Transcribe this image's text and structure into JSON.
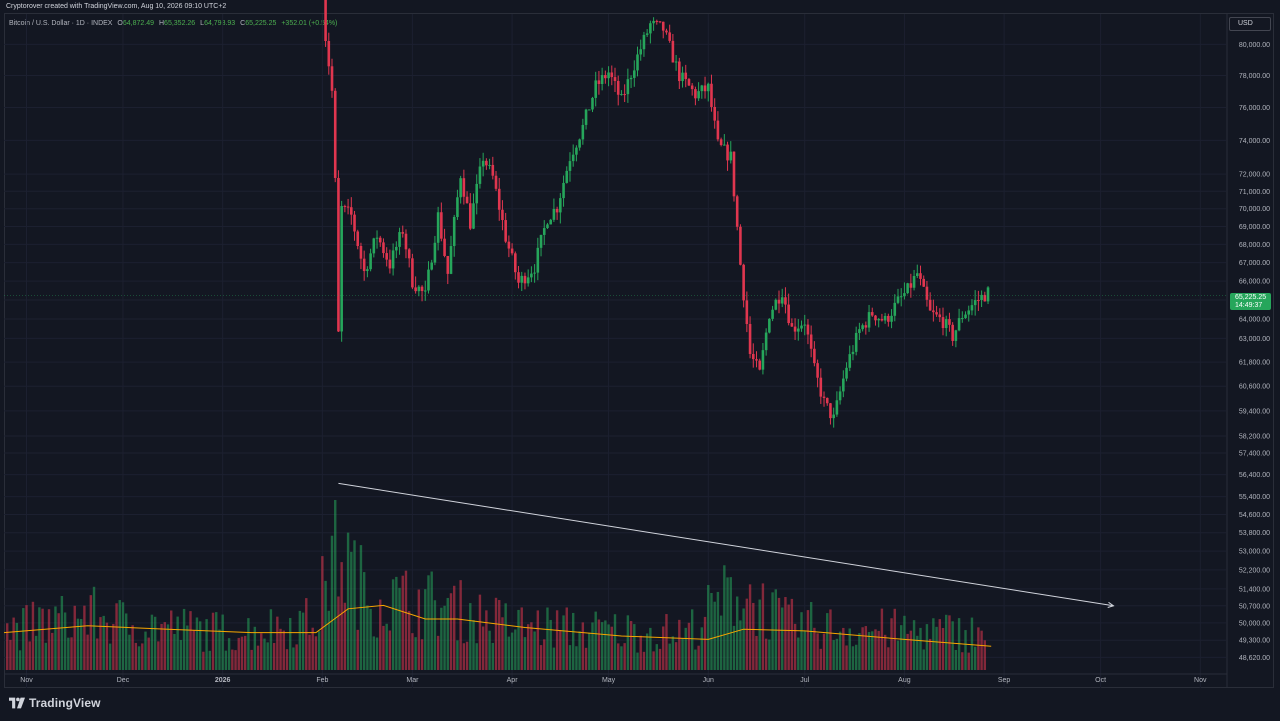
{
  "header": {
    "attribution": "Cryptorover created with TradingView.com, Aug 10, 2026 09:10 UTC+2"
  },
  "legend": {
    "symbol": "Bitcoin / U.S. Dollar · 1D · INDEX",
    "open_label": "O",
    "open": "64,872.49",
    "high_label": "H",
    "high": "65,352.26",
    "low_label": "L",
    "low": "64,793.93",
    "close_label": "C",
    "close": "65,225.25",
    "change": "+352.01 (+0.54%)"
  },
  "price_axis": {
    "currency": "USD",
    "last_price": "65,225.25",
    "countdown": "14:49:37"
  },
  "footer": {
    "brand": "TradingView"
  },
  "colors": {
    "background": "#131722",
    "up": "#26a65b",
    "down": "#e0364f",
    "volume_ma": "#f7a600",
    "trend_line": "#d1d4dc",
    "last_price_badge": "#26a65b"
  },
  "chart_data": {
    "type": "candlestick",
    "interval": "1D",
    "y_scale": "log",
    "ylim": [
      48200,
      82000
    ],
    "y_ticks": [
      80000,
      78000,
      76000,
      74000,
      72000,
      71000,
      70000,
      69000,
      68000,
      67000,
      66000,
      65000,
      64000,
      63000,
      61800,
      60600,
      59400,
      58200,
      57400,
      56400,
      55400,
      54600,
      53800,
      53000,
      52200,
      51400,
      50700,
      50000,
      49300,
      48620
    ],
    "x_range": [
      "2025-10-25",
      "2026-11-09"
    ],
    "x_ticks": [
      {
        "label": "Nov",
        "date": "2025-11-01"
      },
      {
        "label": "Dec",
        "date": "2025-12-01"
      },
      {
        "label": "2026",
        "date": "2026-01-01"
      },
      {
        "label": "Feb",
        "date": "2026-02-01"
      },
      {
        "label": "Mar",
        "date": "2026-03-01"
      },
      {
        "label": "Apr",
        "date": "2026-04-01"
      },
      {
        "label": "May",
        "date": "2026-05-01"
      },
      {
        "label": "Jun",
        "date": "2026-06-01"
      },
      {
        "label": "Jul",
        "date": "2026-07-01"
      },
      {
        "label": "Aug",
        "date": "2026-08-01"
      },
      {
        "label": "Sep",
        "date": "2026-09-01"
      },
      {
        "label": "Oct",
        "date": "2026-10-01"
      },
      {
        "label": "Nov",
        "date": "2026-11-01"
      }
    ],
    "price_path": [
      [
        "2026-02-01",
        84000
      ],
      [
        "2026-02-02",
        80500
      ],
      [
        "2026-02-04",
        77000
      ],
      [
        "2026-02-05",
        71500
      ],
      [
        "2026-02-06",
        63200
      ],
      [
        "2026-02-07",
        70000
      ],
      [
        "2026-02-10",
        69600
      ],
      [
        "2026-02-14",
        66500
      ],
      [
        "2026-02-18",
        68500
      ],
      [
        "2026-02-22",
        66900
      ],
      [
        "2026-02-26",
        68800
      ],
      [
        "2026-03-01",
        66000
      ],
      [
        "2026-03-05",
        65200
      ],
      [
        "2026-03-09",
        69600
      ],
      [
        "2026-03-12",
        66400
      ],
      [
        "2026-03-16",
        72000
      ],
      [
        "2026-03-19",
        69200
      ],
      [
        "2026-03-23",
        73000
      ],
      [
        "2026-03-26",
        71800
      ],
      [
        "2026-03-30",
        68400
      ],
      [
        "2026-04-03",
        65900
      ],
      [
        "2026-04-08",
        66800
      ],
      [
        "2026-04-12",
        69500
      ],
      [
        "2026-04-15",
        70100
      ],
      [
        "2026-04-19",
        73000
      ],
      [
        "2026-04-23",
        74800
      ],
      [
        "2026-04-27",
        77300
      ],
      [
        "2026-05-01",
        78200
      ],
      [
        "2026-05-05",
        76400
      ],
      [
        "2026-05-09",
        78700
      ],
      [
        "2026-05-14",
        81300
      ],
      [
        "2026-05-18",
        81000
      ],
      [
        "2026-05-23",
        78000
      ],
      [
        "2026-05-28",
        76800
      ],
      [
        "2026-06-01",
        77200
      ],
      [
        "2026-06-04",
        73700
      ],
      [
        "2026-06-08",
        73000
      ],
      [
        "2026-06-11",
        66900
      ],
      [
        "2026-06-14",
        62200
      ],
      [
        "2026-06-17",
        61200
      ],
      [
        "2026-06-20",
        64300
      ],
      [
        "2026-06-24",
        65500
      ],
      [
        "2026-06-27",
        63500
      ],
      [
        "2026-07-01",
        63900
      ],
      [
        "2026-07-04",
        61400
      ],
      [
        "2026-07-07",
        59800
      ],
      [
        "2026-07-10",
        59000
      ],
      [
        "2026-07-14",
        61600
      ],
      [
        "2026-07-18",
        63400
      ],
      [
        "2026-07-22",
        64300
      ],
      [
        "2026-07-26",
        63900
      ],
      [
        "2026-07-30",
        64900
      ],
      [
        "2026-08-02",
        65500
      ],
      [
        "2026-08-05",
        66400
      ],
      [
        "2026-08-09",
        64300
      ],
      [
        "2026-08-13",
        63900
      ],
      [
        "2026-08-16",
        63100
      ],
      [
        "2026-08-19",
        64200
      ],
      [
        "2026-08-23",
        64900
      ],
      [
        "2026-08-27",
        65400
      ]
    ],
    "volume_path": [
      [
        "2025-10-26",
        0.3
      ],
      [
        "2025-11-20",
        0.42
      ],
      [
        "2025-12-01",
        0.36
      ],
      [
        "2026-01-05",
        0.28
      ],
      [
        "2026-01-30",
        0.38
      ],
      [
        "2026-02-05",
        0.95
      ],
      [
        "2026-02-15",
        0.55
      ],
      [
        "2026-03-08",
        0.5
      ],
      [
        "2026-04-01",
        0.34
      ],
      [
        "2026-05-01",
        0.3
      ],
      [
        "2026-05-25",
        0.28
      ],
      [
        "2026-06-10",
        0.62
      ],
      [
        "2026-06-25",
        0.36
      ],
      [
        "2026-07-10",
        0.32
      ],
      [
        "2026-08-26",
        0.28
      ]
    ],
    "volume_ma_path": [
      [
        "2025-10-25",
        0.22
      ],
      [
        "2025-11-20",
        0.26
      ],
      [
        "2025-12-15",
        0.24
      ],
      [
        "2026-01-10",
        0.22
      ],
      [
        "2026-01-30",
        0.22
      ],
      [
        "2026-02-09",
        0.36
      ],
      [
        "2026-02-20",
        0.38
      ],
      [
        "2026-03-05",
        0.3
      ],
      [
        "2026-03-15",
        0.3
      ],
      [
        "2026-04-05",
        0.25
      ],
      [
        "2026-05-05",
        0.2
      ],
      [
        "2026-06-01",
        0.18
      ],
      [
        "2026-06-12",
        0.24
      ],
      [
        "2026-07-01",
        0.23
      ],
      [
        "2026-08-01",
        0.18
      ],
      [
        "2026-08-28",
        0.14
      ]
    ],
    "trend_line": {
      "start": [
        "2026-02-06",
        56000
      ],
      "end": [
        "2026-10-05",
        50700
      ]
    },
    "last_price": 65225.25
  }
}
